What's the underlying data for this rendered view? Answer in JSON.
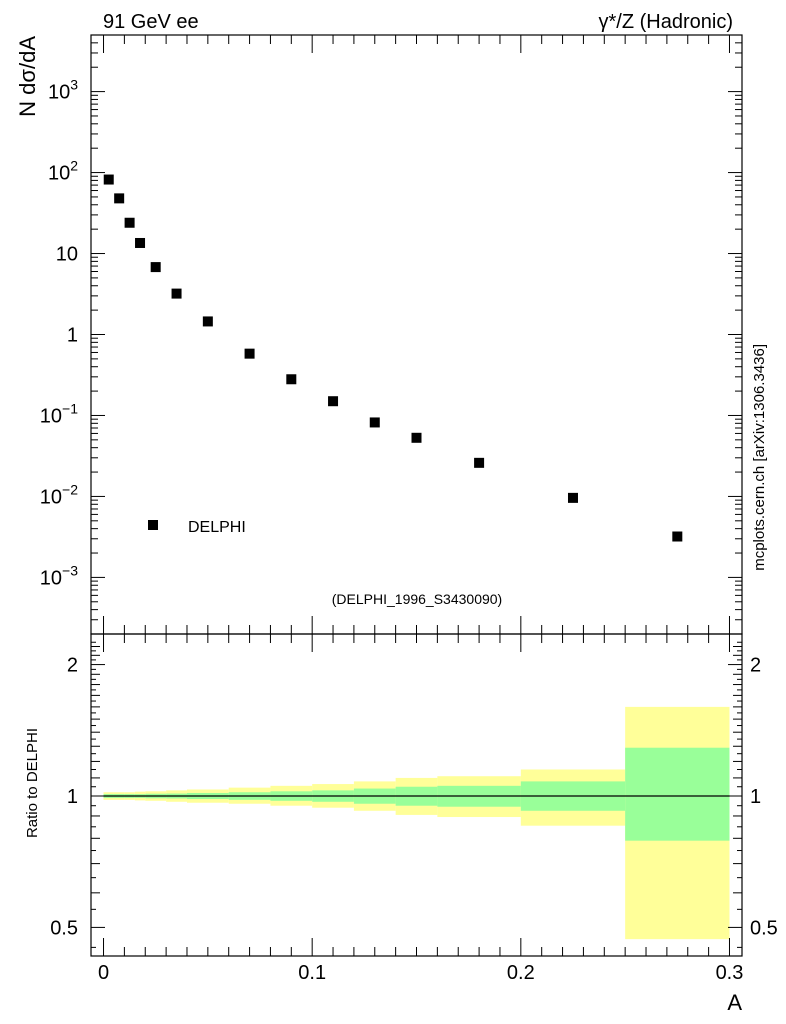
{
  "header": {
    "left_label": "91 GeV ee",
    "right_label": "γ*/Z (Hadronic)"
  },
  "side_label": "mcplots.cern.ch [arXiv:1306.3436]",
  "watermark": "(DELPHI_1996_S3430090)",
  "colors": {
    "outer_band": "#ffff99",
    "inner_band": "#99ff99",
    "marker": "#000000",
    "watermark": "#999999"
  },
  "chart_data": [
    {
      "type": "scatter",
      "title": "",
      "xlabel": "A",
      "ylabel": "N dσ/dA",
      "yscale": "log",
      "xlim": [
        -0.006,
        0.306
      ],
      "ylim": [
        0.0002,
        5000
      ],
      "ytick_labels": [
        {
          "value": 0.001,
          "base": "10",
          "exp": "−3"
        },
        {
          "value": 0.01,
          "base": "10",
          "exp": "−2"
        },
        {
          "value": 0.1,
          "base": "10",
          "exp": "−1"
        },
        {
          "value": 1,
          "base": "1",
          "exp": ""
        },
        {
          "value": 10,
          "base": "10",
          "exp": ""
        },
        {
          "value": 100,
          "base": "10",
          "exp": "2"
        },
        {
          "value": 1000,
          "base": "10",
          "exp": "3"
        }
      ],
      "legend": {
        "label": "DELPHI",
        "position": "lower-left"
      },
      "series": [
        {
          "name": "DELPHI",
          "marker": "square",
          "points": [
            {
              "x": 0.0025,
              "y": 82
            },
            {
              "x": 0.0075,
              "y": 48
            },
            {
              "x": 0.0125,
              "y": 24
            },
            {
              "x": 0.0175,
              "y": 13.5
            },
            {
              "x": 0.025,
              "y": 6.8
            },
            {
              "x": 0.035,
              "y": 3.2
            },
            {
              "x": 0.05,
              "y": 1.45
            },
            {
              "x": 0.07,
              "y": 0.58
            },
            {
              "x": 0.09,
              "y": 0.28
            },
            {
              "x": 0.11,
              "y": 0.15
            },
            {
              "x": 0.13,
              "y": 0.082
            },
            {
              "x": 0.15,
              "y": 0.053
            },
            {
              "x": 0.18,
              "y": 0.026
            },
            {
              "x": 0.225,
              "y": 0.0096
            },
            {
              "x": 0.275,
              "y": 0.0032
            }
          ]
        }
      ]
    },
    {
      "type": "area",
      "title": "",
      "xlabel": "A",
      "ylabel": "Ratio to DELPHI",
      "yscale": "log",
      "xlim": [
        -0.006,
        0.306
      ],
      "ylim": [
        0.43,
        2.35
      ],
      "xticks": [
        0,
        0.1,
        0.2,
        0.3
      ],
      "xtick_labels": [
        "0",
        "0.1",
        "0.2",
        "0.3"
      ],
      "yticks": [
        0.5,
        1,
        2
      ],
      "ytick_labels": [
        "0.5",
        "1",
        "2"
      ],
      "reference_line": 1,
      "bins": [
        {
          "lo": 0.0,
          "hi": 0.005,
          "inner": [
            0.99,
            1.01
          ],
          "outer": [
            0.98,
            1.02
          ]
        },
        {
          "lo": 0.005,
          "hi": 0.01,
          "inner": [
            0.99,
            1.01
          ],
          "outer": [
            0.98,
            1.02
          ]
        },
        {
          "lo": 0.01,
          "hi": 0.015,
          "inner": [
            0.99,
            1.01
          ],
          "outer": [
            0.98,
            1.02
          ]
        },
        {
          "lo": 0.015,
          "hi": 0.02,
          "inner": [
            0.99,
            1.01
          ],
          "outer": [
            0.977,
            1.023
          ]
        },
        {
          "lo": 0.02,
          "hi": 0.03,
          "inner": [
            0.988,
            1.012
          ],
          "outer": [
            0.975,
            1.025
          ]
        },
        {
          "lo": 0.03,
          "hi": 0.04,
          "inner": [
            0.987,
            1.013
          ],
          "outer": [
            0.97,
            1.03
          ]
        },
        {
          "lo": 0.04,
          "hi": 0.06,
          "inner": [
            0.984,
            1.016
          ],
          "outer": [
            0.965,
            1.035
          ]
        },
        {
          "lo": 0.06,
          "hi": 0.08,
          "inner": [
            0.98,
            1.02
          ],
          "outer": [
            0.96,
            1.045
          ]
        },
        {
          "lo": 0.08,
          "hi": 0.1,
          "inner": [
            0.975,
            1.025
          ],
          "outer": [
            0.95,
            1.055
          ]
        },
        {
          "lo": 0.1,
          "hi": 0.12,
          "inner": [
            0.97,
            1.03
          ],
          "outer": [
            0.94,
            1.065
          ]
        },
        {
          "lo": 0.12,
          "hi": 0.14,
          "inner": [
            0.96,
            1.04
          ],
          "outer": [
            0.925,
            1.08
          ]
        },
        {
          "lo": 0.14,
          "hi": 0.16,
          "inner": [
            0.95,
            1.05
          ],
          "outer": [
            0.905,
            1.1
          ]
        },
        {
          "lo": 0.16,
          "hi": 0.2,
          "inner": [
            0.945,
            1.055
          ],
          "outer": [
            0.895,
            1.11
          ]
        },
        {
          "lo": 0.2,
          "hi": 0.25,
          "inner": [
            0.925,
            1.08
          ],
          "outer": [
            0.855,
            1.15
          ]
        },
        {
          "lo": 0.25,
          "hi": 0.3,
          "inner": [
            0.79,
            1.29
          ],
          "outer": [
            0.47,
            1.6
          ]
        }
      ]
    }
  ]
}
